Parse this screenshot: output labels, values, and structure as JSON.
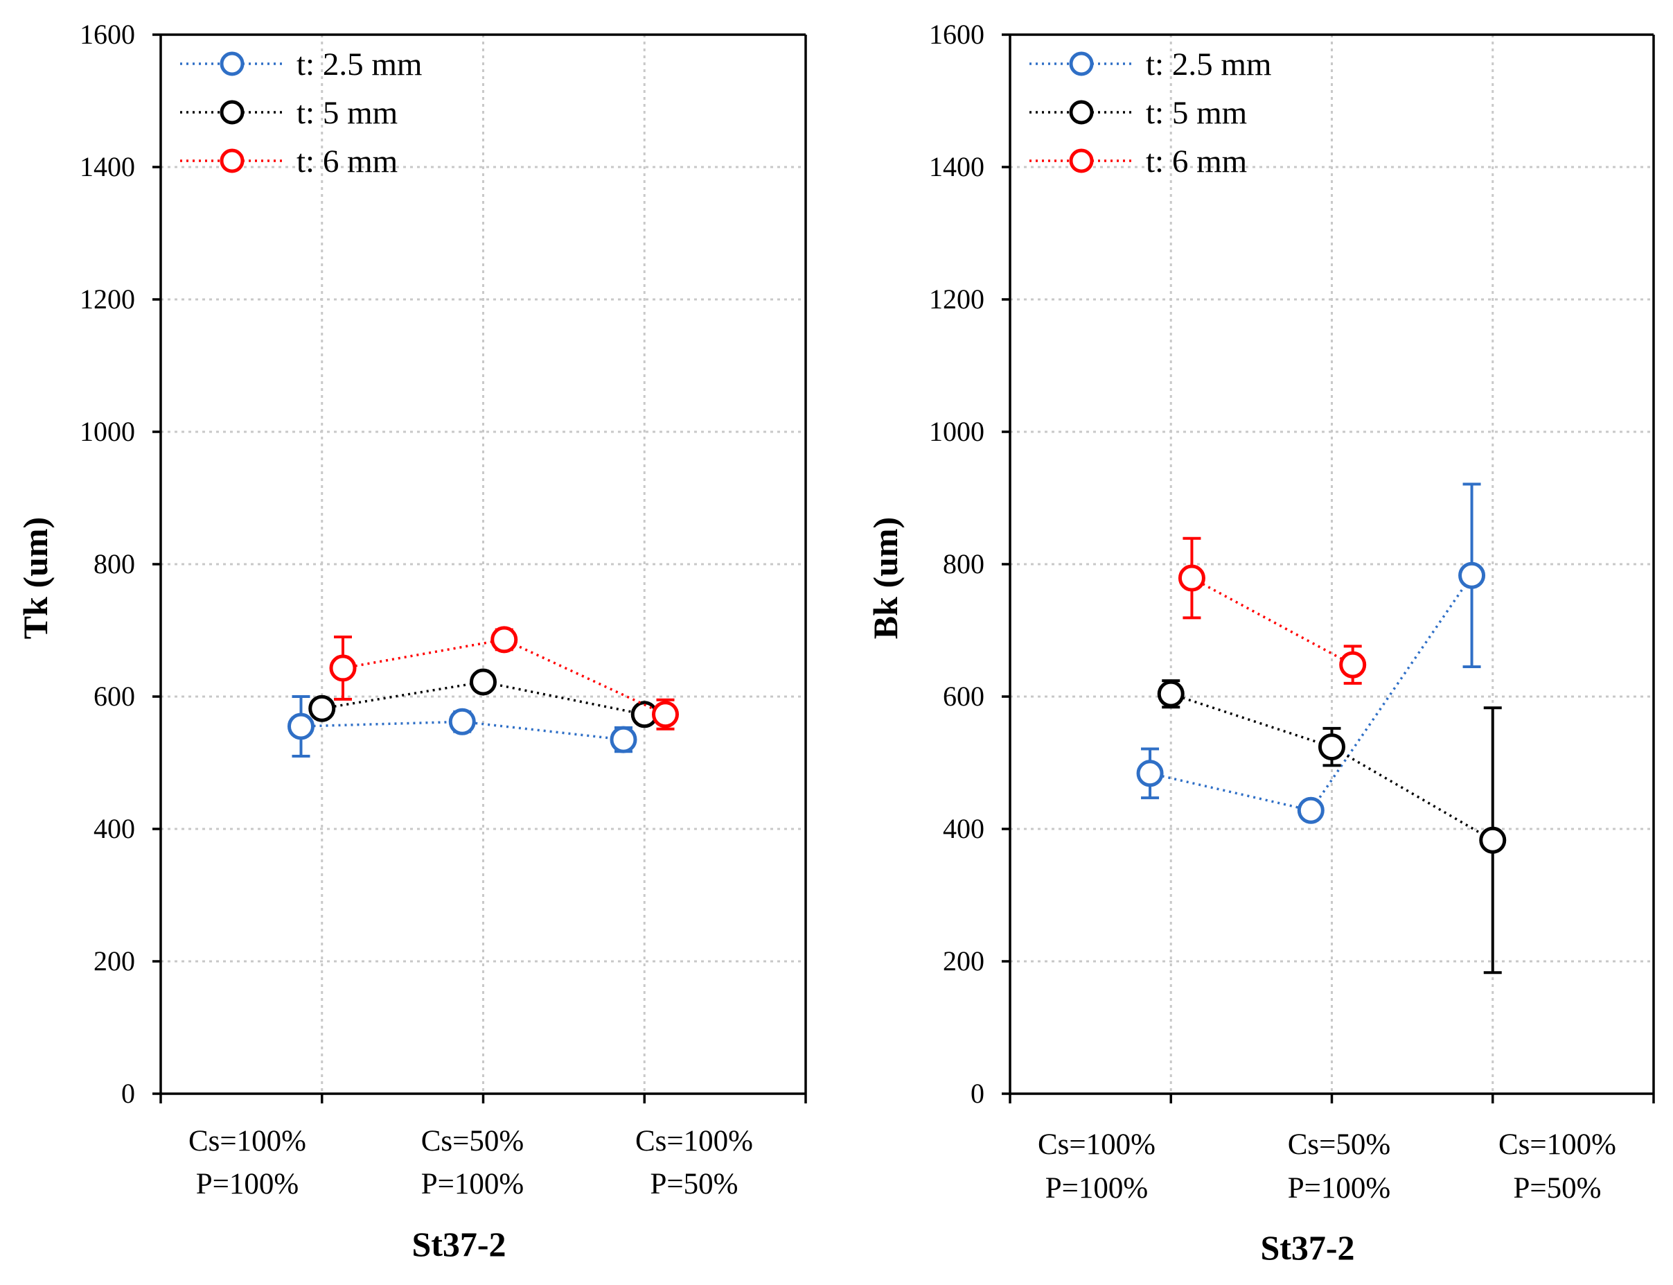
{
  "chart_data": [
    {
      "type": "scatter",
      "ylabel": "Tk (um)",
      "xlabel": "St37-2",
      "ylim": [
        0,
        1600
      ],
      "yticks": [
        0,
        200,
        400,
        600,
        800,
        1000,
        1200,
        1400,
        1600
      ],
      "categories": [
        [
          "Cs=100%",
          "P=100%"
        ],
        [
          "Cs=50%",
          "P=100%"
        ],
        [
          "Cs=100%",
          "P=50%"
        ]
      ],
      "grid": true,
      "legend_position": "top-left",
      "series": [
        {
          "name": "t: 2.5 mm",
          "color": "#2f6fc6",
          "offset": -0.13,
          "values": [
            555,
            562,
            535
          ],
          "errors": [
            45,
            15,
            18
          ]
        },
        {
          "name": "t: 5 mm",
          "color": "#000000",
          "offset": 0.0,
          "values": [
            582,
            622,
            573
          ],
          "errors": [
            10,
            10,
            10
          ]
        },
        {
          "name": "t: 6 mm",
          "color": "#ff0000",
          "offset": 0.13,
          "values": [
            643,
            686,
            573
          ],
          "errors": [
            47,
            15,
            22
          ]
        }
      ]
    },
    {
      "type": "scatter",
      "ylabel": "Bk (um)",
      "xlabel": "St37-2",
      "ylim": [
        0,
        1600
      ],
      "yticks": [
        0,
        200,
        400,
        600,
        800,
        1000,
        1200,
        1400,
        1600
      ],
      "categories": [
        [
          "Cs=100%",
          "P=100%"
        ],
        [
          "Cs=50%",
          "P=100%"
        ],
        [
          "Cs=100%",
          "P=50%"
        ]
      ],
      "grid": true,
      "legend_position": "top-left",
      "series": [
        {
          "name": "t: 2.5 mm",
          "color": "#2f6fc6",
          "offset": -0.13,
          "values": [
            484,
            428,
            783
          ],
          "errors": [
            37,
            10,
            138
          ]
        },
        {
          "name": "t: 5 mm",
          "color": "#000000",
          "offset": 0.0,
          "values": [
            604,
            524,
            383
          ],
          "errors": [
            20,
            28,
            200
          ]
        },
        {
          "name": "t: 6 mm",
          "color": "#ff0000",
          "offset": 0.13,
          "values": [
            779,
            648,
            null
          ],
          "errors": [
            60,
            28,
            null
          ]
        }
      ]
    }
  ]
}
